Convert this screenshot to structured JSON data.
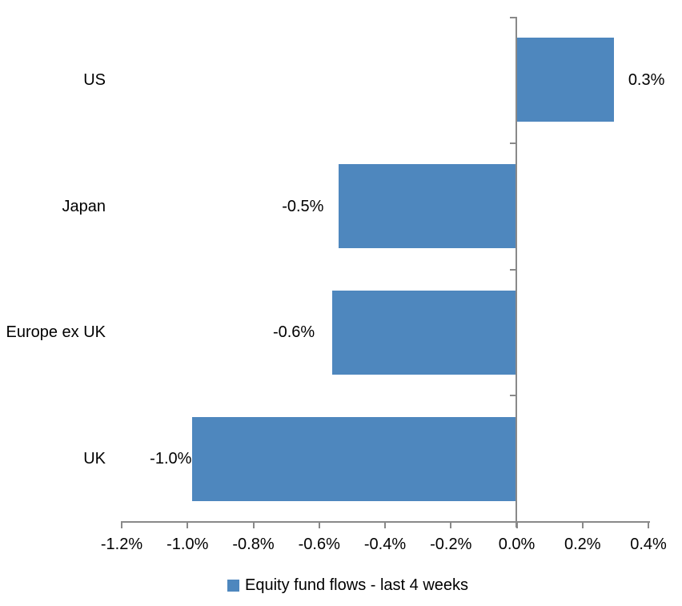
{
  "chart_data": {
    "type": "bar",
    "orientation": "horizontal",
    "title": "",
    "xlabel": "",
    "ylabel": "",
    "categories": [
      "US",
      "Japan",
      "Europe ex UK",
      "UK"
    ],
    "series": [
      {
        "name": "Equity fund flows - last 4 weeks",
        "values": [
          0.3,
          -0.5,
          -0.6,
          -1.0
        ],
        "values_precise": [
          0.295,
          -0.54,
          -0.56,
          -0.985
        ],
        "data_labels": [
          "0.3%",
          "-0.5%",
          "-0.6%",
          "-1.0%"
        ]
      }
    ],
    "xlim": [
      -1.2,
      0.4
    ],
    "x_tick_values": [
      -1.2,
      -1.0,
      -0.8,
      -0.6,
      -0.4,
      -0.2,
      0.0,
      0.2,
      0.4
    ],
    "x_tick_labels": [
      "-1.2%",
      "-1.0%",
      "-0.8%",
      "-0.6%",
      "-0.4%",
      "-0.2%",
      "0.0%",
      "0.2%",
      "0.4%"
    ],
    "grid": false,
    "legend_position": "bottom-center",
    "colors": {
      "bar": "#4E87BE",
      "axis": "#898989",
      "text": "#000000",
      "background": "#FFFFFF"
    }
  },
  "legend": {
    "items": [
      {
        "label": "Equity fund flows - last 4 weeks",
        "swatch_color": "#4E87BE"
      }
    ]
  }
}
